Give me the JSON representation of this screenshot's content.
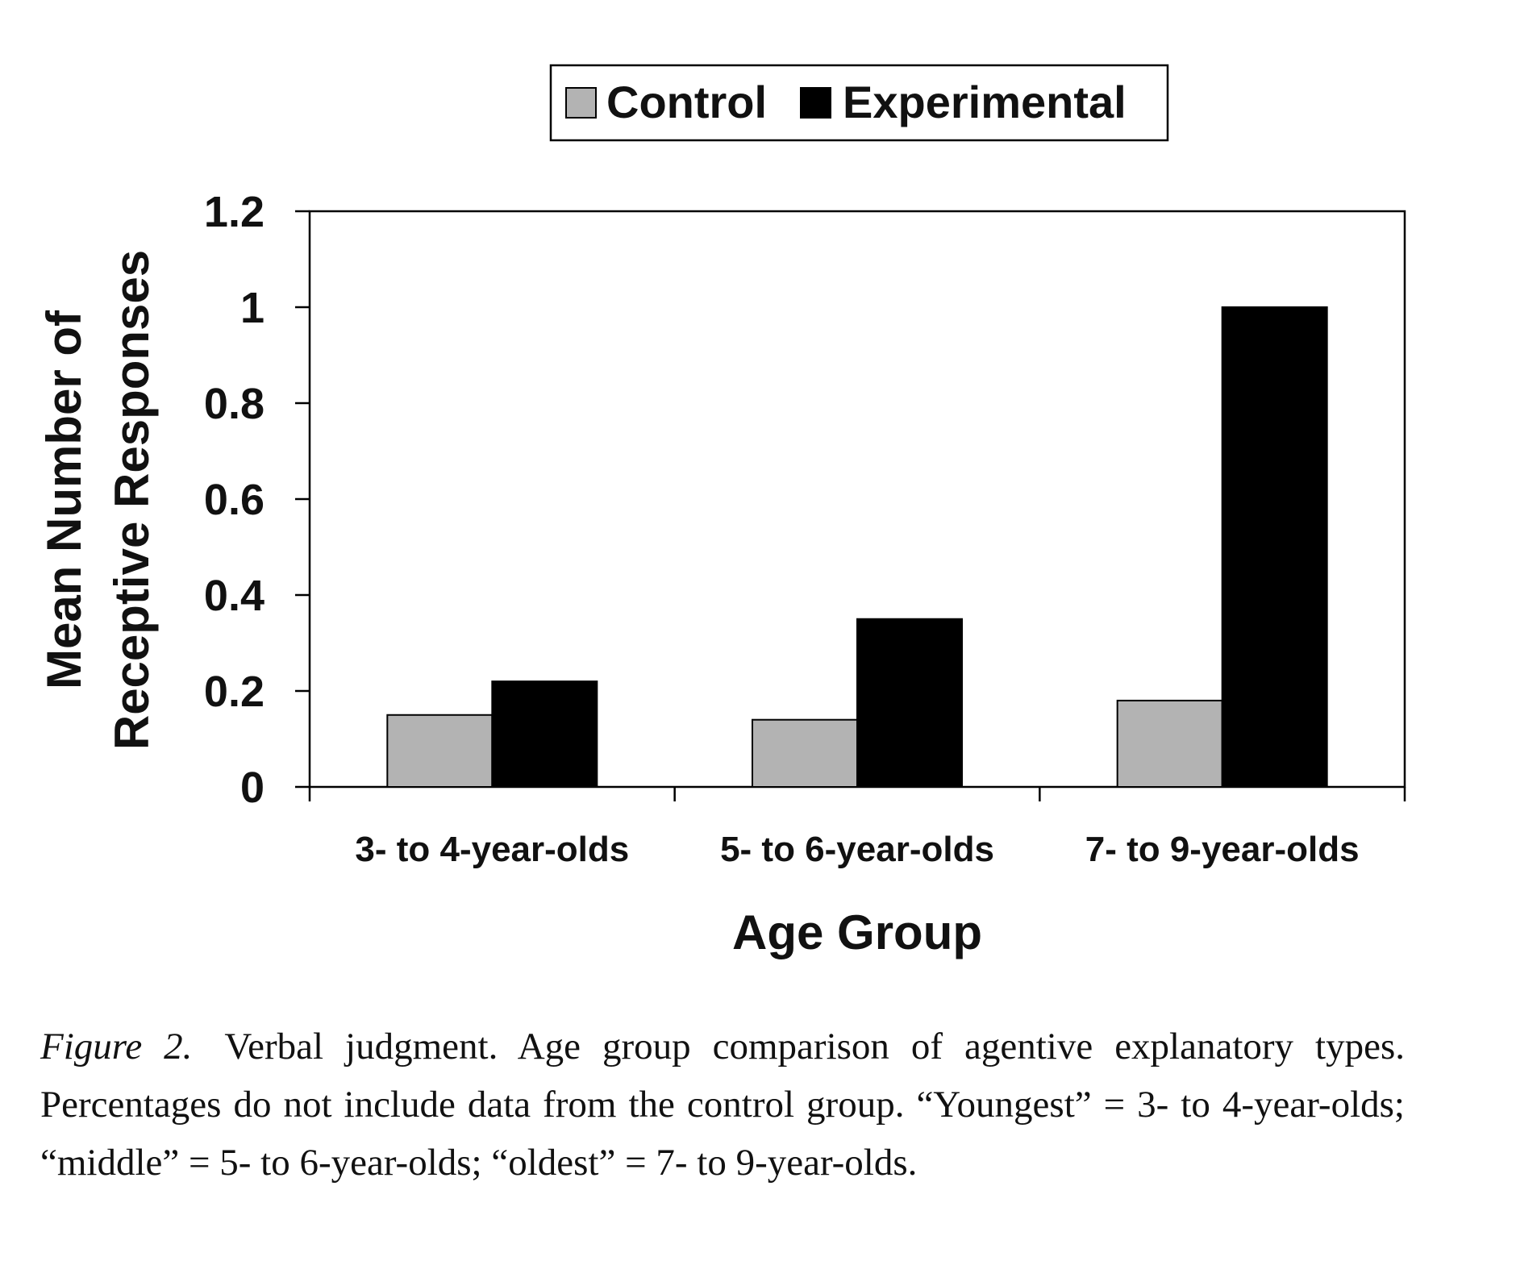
{
  "chart_data": {
    "type": "bar",
    "categories": [
      "3- to 4-year-olds",
      "5- to 6-year-olds",
      "7- to 9-year-olds"
    ],
    "series": [
      {
        "name": "Control",
        "values": [
          0.15,
          0.14,
          0.18
        ],
        "color": "#b3b3b3"
      },
      {
        "name": "Experimental",
        "values": [
          0.22,
          0.35,
          1.0
        ],
        "color": "#000000"
      }
    ],
    "ylabel": [
      "Mean Number of",
      "Receptive Responses"
    ],
    "xlabel": "Age Group",
    "ylim": [
      0,
      1.2
    ],
    "yticks": [
      "0",
      "0.2",
      "0.4",
      "0.6",
      "0.8",
      "1",
      "1.2"
    ],
    "grid": false,
    "legend_position": "top-center"
  },
  "caption": {
    "label": "Figure 2.",
    "text": "Verbal judgment. Age group comparison of agentive explanatory types. Percentages do not include data from the control group. “Youngest” = 3- to 4-year-olds; “middle” = 5- to 6-year-olds; “oldest” = 7- to 9-year-olds."
  }
}
